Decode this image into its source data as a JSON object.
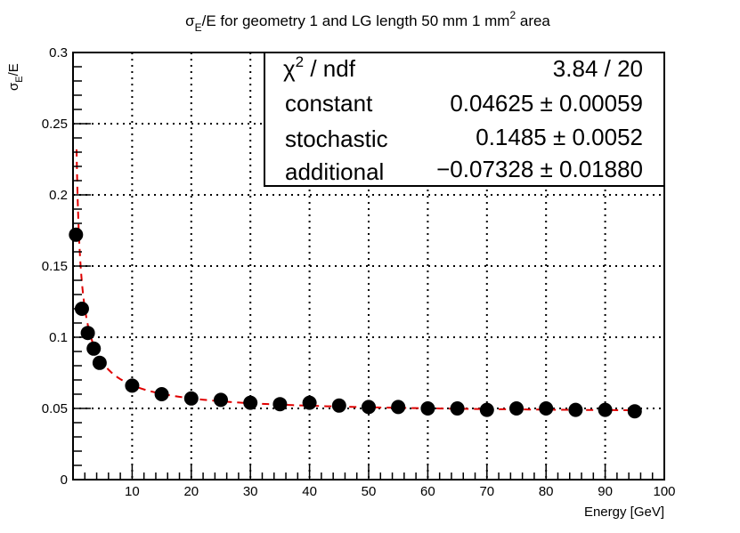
{
  "chart_data": {
    "type": "scatter",
    "title": {
      "prefix": "σ",
      "sub": "E",
      "middle": "/E for geometry 1 and LG length 50 mm  1 mm",
      "sup": "2",
      "suffix": " area"
    },
    "xlabel": "Energy [GeV]",
    "ylabel": {
      "main": "σ",
      "sub": "E",
      "suffix": "/E"
    },
    "xlim": [
      0,
      100
    ],
    "ylim": [
      0,
      0.3
    ],
    "x_ticks": [
      "10",
      "20",
      "30",
      "40",
      "50",
      "60",
      "70",
      "80",
      "90",
      "100"
    ],
    "y_ticks": [
      "0",
      "0.05",
      "0.1",
      "0.15",
      "0.2",
      "0.25",
      "0.3"
    ],
    "grid": true,
    "points": {
      "x": [
        0.5,
        1.5,
        2.5,
        3.5,
        4.5,
        10,
        15,
        20,
        25,
        30,
        35,
        40,
        45,
        50,
        55,
        60,
        65,
        70,
        75,
        80,
        85,
        90,
        95
      ],
      "y": [
        0.172,
        0.12,
        0.103,
        0.092,
        0.082,
        0.066,
        0.06,
        0.057,
        0.056,
        0.054,
        0.053,
        0.054,
        0.052,
        0.051,
        0.051,
        0.05,
        0.05,
        0.049,
        0.05,
        0.05,
        0.049,
        0.049,
        0.048
      ]
    },
    "fit": {
      "color": "#e00000",
      "style": "dashed",
      "constant": 0.04625,
      "stochastic": 0.1485,
      "additional": -0.07328
    },
    "stats": {
      "rows": [
        {
          "label": "χ",
          "label_sup": "2",
          "label_rest": " / ndf",
          "value": "3.84 / 20"
        },
        {
          "label": "constant",
          "value": "0.04625 ± 0.00059"
        },
        {
          "label": "stochastic",
          "value": "0.1485 ± 0.0052"
        },
        {
          "label": "additional",
          "value": "−0.07328 ± 0.01880"
        }
      ],
      "placement": "top-right"
    }
  }
}
